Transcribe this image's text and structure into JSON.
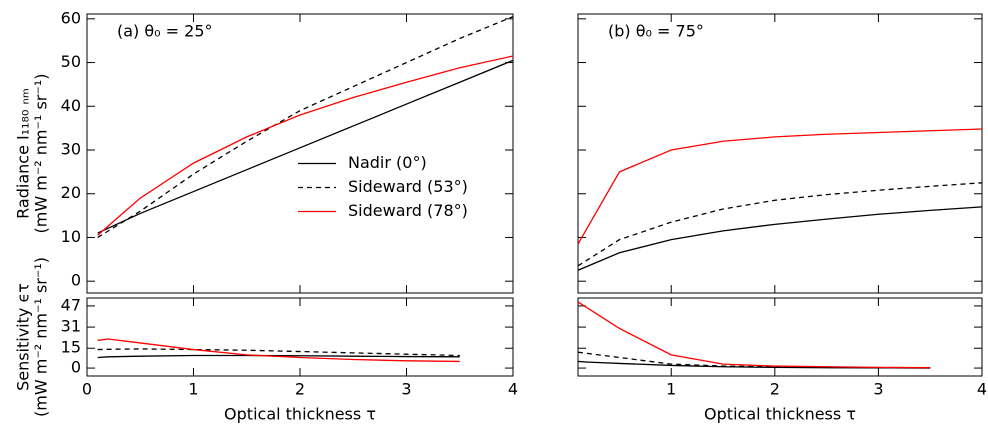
{
  "chart_data": [
    {
      "type": "line",
      "title": "(a) θ₀ = 25°",
      "ylabel": [
        "Radiance I₁₁₈₀ ₙₘ",
        "(mW m⁻² nm⁻¹ sr⁻¹)"
      ],
      "x": [
        0.1,
        0.5,
        1,
        1.5,
        2,
        2.5,
        3,
        3.5,
        4
      ],
      "xlim": [
        0,
        4
      ],
      "xticks": [
        0,
        1,
        2,
        3,
        4
      ],
      "xtick_labels": false,
      "ylim": [
        -2.7,
        61.1
      ],
      "yticks": [
        0,
        10,
        20,
        30,
        40,
        50,
        60
      ],
      "ytick_labels": true,
      "legend": "center right",
      "series": [
        {
          "name": "Nadir (0°)",
          "color": "#000000",
          "dash": false,
          "values": [
            11,
            15.5,
            20.5,
            25.5,
            30.5,
            35.5,
            40.5,
            45.5,
            50.5
          ]
        },
        {
          "name": "Sideward (53°)",
          "color": "#000000",
          "dash": true,
          "values": [
            10,
            16,
            24.5,
            32,
            39,
            44.5,
            50,
            55.5,
            60.5
          ]
        },
        {
          "name": "Sideward (78°)",
          "color": "#ff0000",
          "dash": false,
          "values": [
            10.5,
            19,
            27,
            33,
            38,
            42,
            45.5,
            48.8,
            51.5
          ]
        }
      ]
    },
    {
      "type": "line",
      "title": "(b) θ₀ = 75°",
      "x": [
        0.1,
        0.5,
        1,
        1.5,
        2,
        2.5,
        3,
        3.5,
        4
      ],
      "xlim": [
        0.1,
        4
      ],
      "xticks": [
        1,
        2,
        3,
        4
      ],
      "xtick_labels": false,
      "ylim": [
        -2.7,
        61.1
      ],
      "yticks": [
        0,
        10,
        20,
        30,
        40,
        50,
        60
      ],
      "ytick_labels": false,
      "series": [
        {
          "color": "#000000",
          "dash": false,
          "values": [
            2.5,
            6.5,
            9.5,
            11.5,
            13,
            14.2,
            15.3,
            16.2,
            17
          ]
        },
        {
          "color": "#000000",
          "dash": true,
          "values": [
            3.5,
            9.5,
            13.5,
            16.5,
            18.5,
            19.8,
            20.8,
            21.7,
            22.5
          ]
        },
        {
          "color": "#ff0000",
          "dash": false,
          "values": [
            8.5,
            25,
            30,
            32,
            33,
            33.6,
            34,
            34.4,
            34.8
          ]
        }
      ]
    },
    {
      "type": "line",
      "ylabel": [
        "Sensitivity ϵτ",
        "(mW m⁻² nm⁻¹ sr⁻¹)"
      ],
      "xlabel": "Optical thickness τ",
      "x": [
        0.1,
        0.2,
        0.5,
        1,
        1.5,
        2,
        2.5,
        3,
        3.5
      ],
      "xlim": [
        0,
        4
      ],
      "xticks": [
        0,
        1,
        2,
        3,
        4
      ],
      "xtick_labels": true,
      "ylim": [
        -6,
        53
      ],
      "yticks": [
        0,
        15,
        31,
        47
      ],
      "ytick_labels": true,
      "series": [
        {
          "color": "#000000",
          "dash": false,
          "values": [
            8,
            8.5,
            9,
            9.5,
            9.5,
            9.3,
            9,
            8.7,
            8.5
          ]
        },
        {
          "color": "#000000",
          "dash": true,
          "values": [
            14,
            14.2,
            14.5,
            14,
            13.5,
            12.5,
            11.5,
            10.5,
            9.5
          ]
        },
        {
          "color": "#ff0000",
          "dash": false,
          "values": [
            21,
            22,
            19,
            14,
            10,
            8,
            6.5,
            5.5,
            5
          ]
        }
      ]
    },
    {
      "type": "line",
      "xlabel": "Optical thickness τ",
      "x": [
        0.1,
        0.2,
        0.5,
        1,
        1.5,
        2,
        2.5,
        3,
        3.5
      ],
      "xlim": [
        0.1,
        4
      ],
      "xticks": [
        1,
        2,
        3,
        4
      ],
      "xtick_labels": true,
      "ylim": [
        -6,
        53
      ],
      "yticks": [
        0,
        15,
        31,
        47
      ],
      "ytick_labels": false,
      "series": [
        {
          "color": "#000000",
          "dash": false,
          "values": [
            5,
            4.5,
            3.5,
            2,
            1,
            0.5,
            0.3,
            0.2,
            0
          ]
        },
        {
          "color": "#000000",
          "dash": true,
          "values": [
            12,
            11,
            8,
            3,
            1.5,
            1,
            0.5,
            0.3,
            0.2
          ]
        },
        {
          "color": "#ff0000",
          "dash": false,
          "values": [
            50,
            45,
            30,
            10,
            3,
            1.5,
            1,
            0.5,
            0.3
          ]
        }
      ]
    }
  ]
}
